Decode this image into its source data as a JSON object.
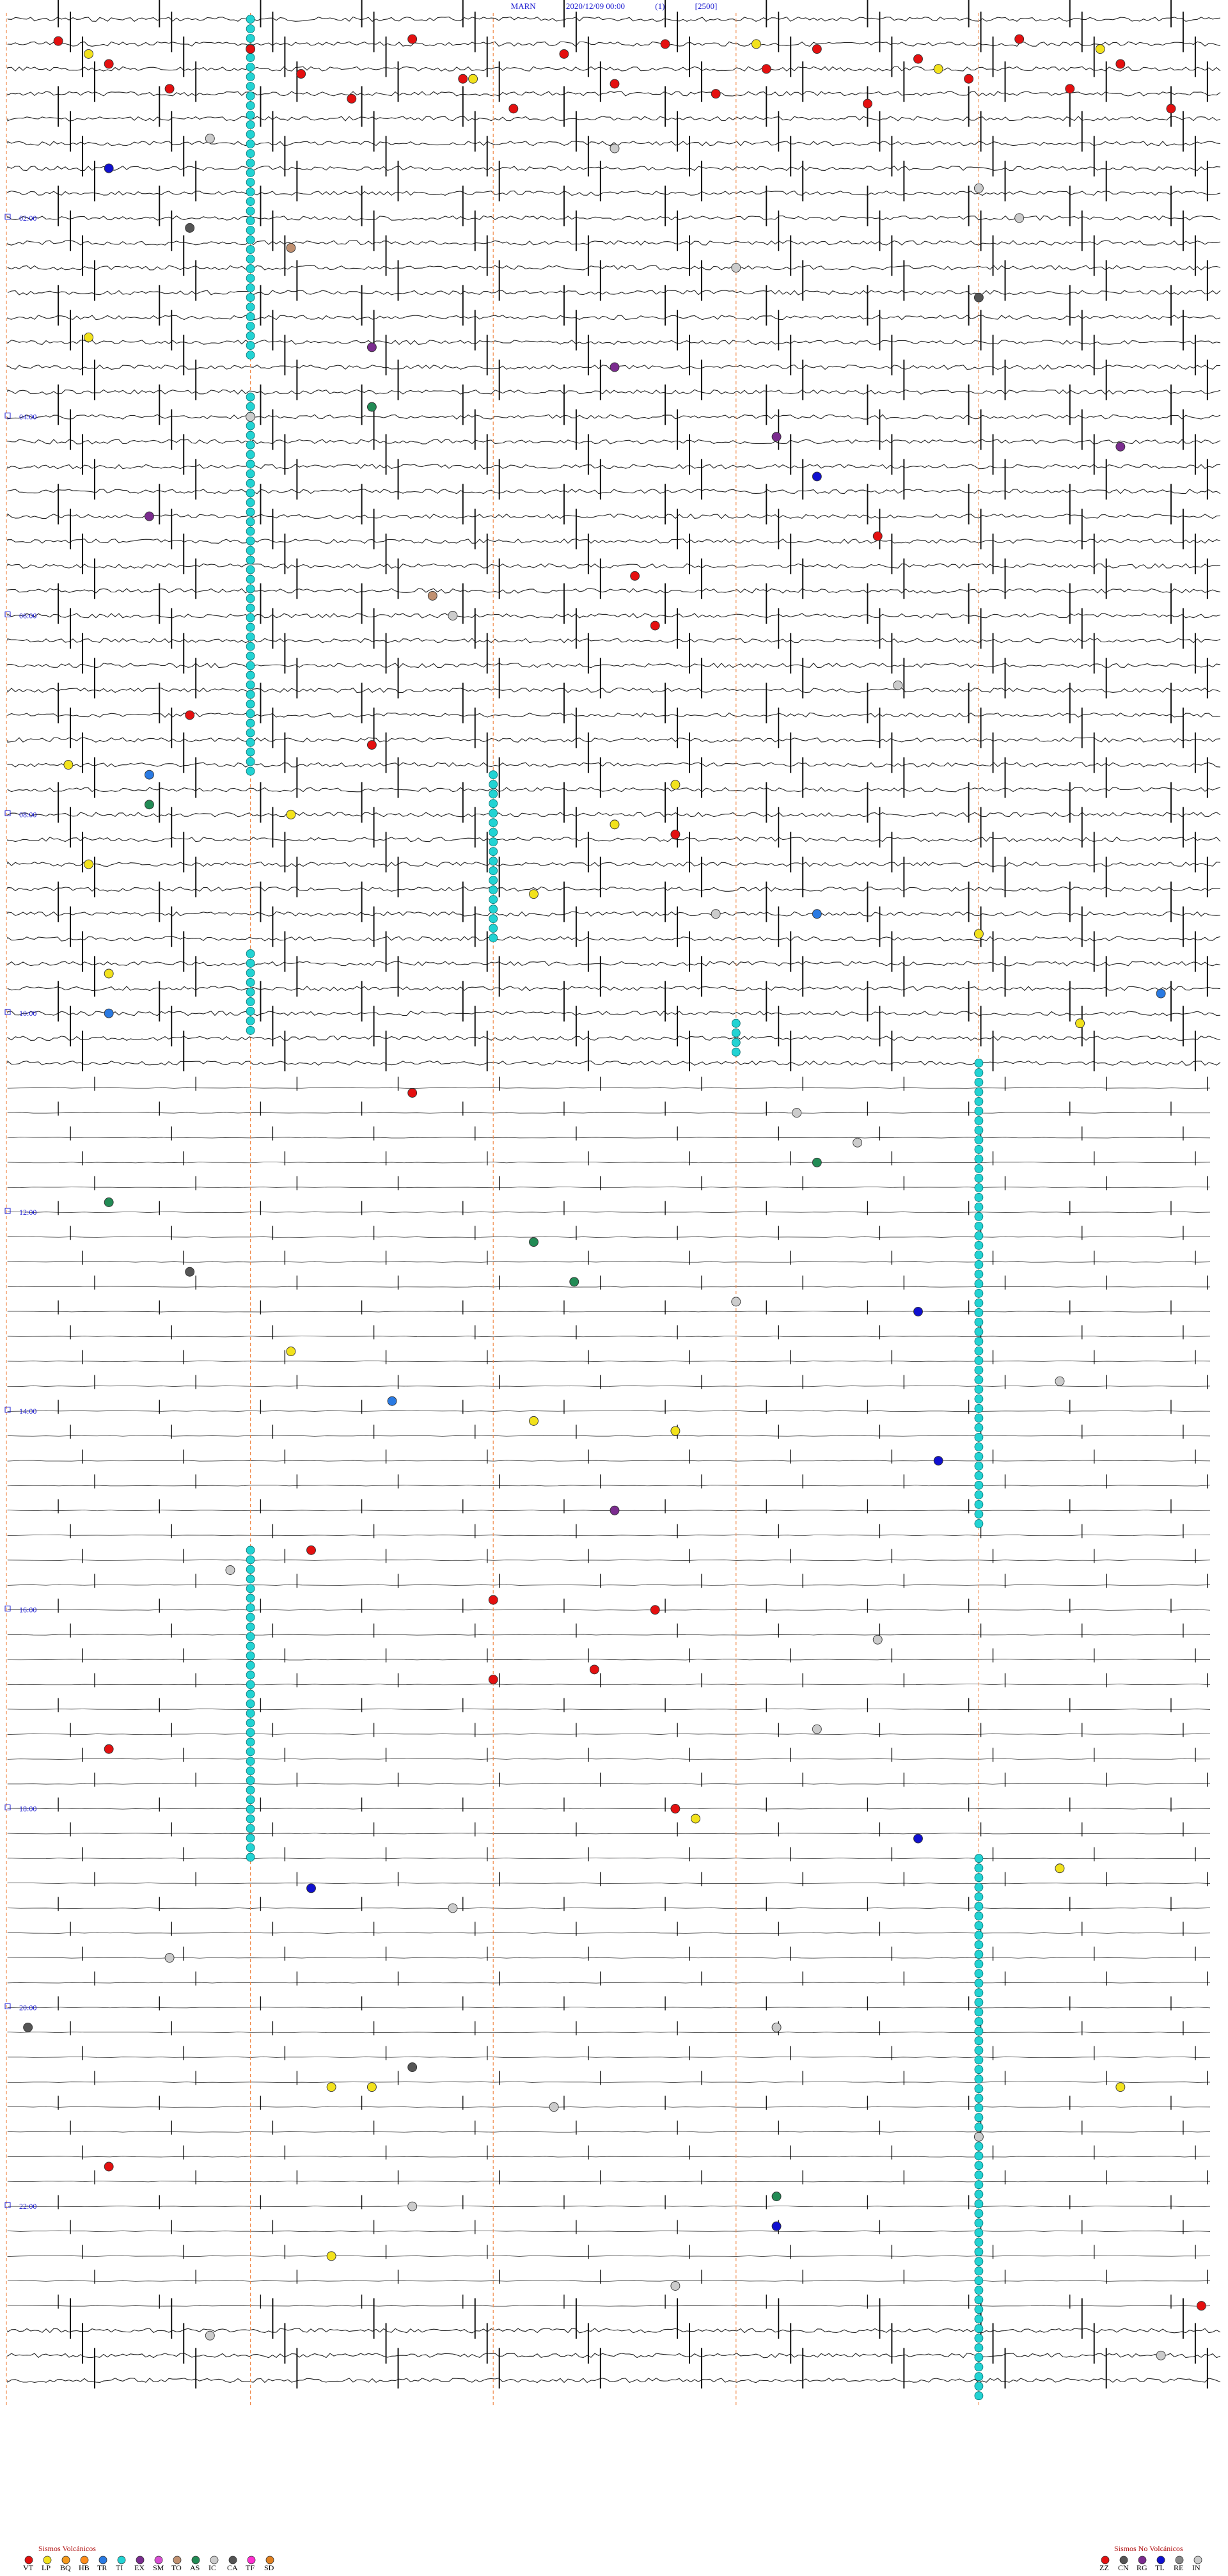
{
  "header": {
    "station": "MARN",
    "datetime": "2020/12/09 00:00",
    "channel": "(1)",
    "scale": "[2500]"
  },
  "chart_data": {
    "type": "helicorder",
    "title": "MARN 2020/12/09 00:00 (1) [2500]",
    "hour_labels": [
      "02:00",
      "04:00",
      "06:00",
      "08:00",
      "10:00",
      "12:00",
      "14:00",
      "16:00",
      "18:00",
      "20:00",
      "22:00"
    ],
    "x_range_minutes": [
      0,
      60
    ],
    "y_range_hours": [
      0,
      24
    ],
    "event_colors": {
      "VT": "#e41010",
      "LP": "#f2e21c",
      "BQ": "#f59a1e",
      "HB": "#ff8c1a",
      "TR": "#2a7ae2",
      "TI": "#22d3d3",
      "EX": "#7b2c8f",
      "SM": "#d94fd4",
      "TO": "#c09070",
      "AS": "#228b55",
      "IC": "#cccccc",
      "CA": "#555555",
      "TF": "#ff2fd0",
      "SD": "#e08020",
      "ZZ": "#e41010",
      "CN": "#555555",
      "RG": "#7b2c8f",
      "TL": "#1010d0",
      "RE": "#888888",
      "IN": "#cccccc"
    },
    "events": [
      {
        "t": 0.22,
        "m": 2.5,
        "c": "#e41010"
      },
      {
        "t": 0.45,
        "m": 5.0,
        "c": "#e41010"
      },
      {
        "t": 0.7,
        "m": 8.0,
        "c": "#e41010"
      },
      {
        "t": 0.3,
        "m": 12.0,
        "c": "#e41010"
      },
      {
        "t": 0.55,
        "m": 14.5,
        "c": "#e41010"
      },
      {
        "t": 0.8,
        "m": 17.0,
        "c": "#e41010"
      },
      {
        "t": 0.2,
        "m": 20.0,
        "c": "#e41010"
      },
      {
        "t": 0.6,
        "m": 22.5,
        "c": "#e41010"
      },
      {
        "t": 0.9,
        "m": 25.0,
        "c": "#e41010"
      },
      {
        "t": 0.35,
        "m": 27.5,
        "c": "#e41010"
      },
      {
        "t": 0.65,
        "m": 30.0,
        "c": "#e41010"
      },
      {
        "t": 0.25,
        "m": 32.5,
        "c": "#e41010"
      },
      {
        "t": 0.75,
        "m": 35.0,
        "c": "#e41010"
      },
      {
        "t": 0.5,
        "m": 37.5,
        "c": "#e41010"
      },
      {
        "t": 0.3,
        "m": 40.0,
        "c": "#e41010"
      },
      {
        "t": 0.85,
        "m": 42.5,
        "c": "#e41010"
      },
      {
        "t": 0.4,
        "m": 45.0,
        "c": "#e41010"
      },
      {
        "t": 0.6,
        "m": 47.5,
        "c": "#e41010"
      },
      {
        "t": 0.2,
        "m": 50.0,
        "c": "#e41010"
      },
      {
        "t": 0.7,
        "m": 52.5,
        "c": "#e41010"
      },
      {
        "t": 0.45,
        "m": 55.0,
        "c": "#e41010"
      },
      {
        "t": 0.9,
        "m": 57.5,
        "c": "#e41010"
      },
      {
        "t": 0.35,
        "m": 4.0,
        "c": "#f2e21c"
      },
      {
        "t": 0.6,
        "m": 23.0,
        "c": "#f2e21c"
      },
      {
        "t": 0.25,
        "m": 37.0,
        "c": "#f2e21c"
      },
      {
        "t": 0.5,
        "m": 46.0,
        "c": "#f2e21c"
      },
      {
        "t": 0.3,
        "m": 54.0,
        "c": "#f2e21c"
      },
      {
        "t": 1.2,
        "m": 10.0,
        "c": "#cccccc"
      },
      {
        "t": 1.3,
        "m": 30.0,
        "c": "#cccccc"
      },
      {
        "t": 1.5,
        "m": 5.0,
        "c": "#1010d0"
      },
      {
        "t": 1.7,
        "m": 48.0,
        "c": "#cccccc"
      },
      {
        "t": 2.1,
        "m": 9.0,
        "c": "#555555"
      },
      {
        "t": 2.3,
        "m": 14.0,
        "c": "#c09070"
      },
      {
        "t": 2.5,
        "m": 36.0,
        "c": "#cccccc"
      },
      {
        "t": 2.8,
        "m": 48.0,
        "c": "#555555"
      },
      {
        "t": 3.2,
        "m": 4.0,
        "c": "#f2e21c"
      },
      {
        "t": 3.3,
        "m": 18.0,
        "c": "#7b2c8f"
      },
      {
        "t": 3.5,
        "m": 30.0,
        "c": "#7b2c8f"
      },
      {
        "t": 3.9,
        "m": 18.0,
        "c": "#228b55"
      },
      {
        "t": 4.2,
        "m": 38.0,
        "c": "#7b2c8f"
      },
      {
        "t": 4.3,
        "m": 55.0,
        "c": "#7b2c8f"
      },
      {
        "t": 4.6,
        "m": 40.0,
        "c": "#1010d0"
      },
      {
        "t": 5.0,
        "m": 7.0,
        "c": "#7b2c8f"
      },
      {
        "t": 5.2,
        "m": 43.0,
        "c": "#e41010"
      },
      {
        "t": 5.6,
        "m": 31.0,
        "c": "#e41010"
      },
      {
        "t": 5.8,
        "m": 21.0,
        "c": "#c09070"
      },
      {
        "t": 6.1,
        "m": 32.0,
        "c": "#e41010"
      },
      {
        "t": 6.7,
        "m": 44.0,
        "c": "#cccccc"
      },
      {
        "t": 7.0,
        "m": 9.0,
        "c": "#e41010"
      },
      {
        "t": 7.3,
        "m": 18.0,
        "c": "#e41010"
      },
      {
        "t": 7.5,
        "m": 3.0,
        "c": "#f2e21c"
      },
      {
        "t": 7.6,
        "m": 7.0,
        "c": "#2a7ae2"
      },
      {
        "t": 7.7,
        "m": 33.0,
        "c": "#f2e21c"
      },
      {
        "t": 7.9,
        "m": 7.0,
        "c": "#228b55"
      },
      {
        "t": 8.0,
        "m": 14.0,
        "c": "#f2e21c"
      },
      {
        "t": 8.1,
        "m": 30.0,
        "c": "#f2e21c"
      },
      {
        "t": 8.2,
        "m": 33.0,
        "c": "#e41010"
      },
      {
        "t": 8.5,
        "m": 4.0,
        "c": "#f2e21c"
      },
      {
        "t": 8.8,
        "m": 26.0,
        "c": "#f2e21c"
      },
      {
        "t": 9.0,
        "m": 40.0,
        "c": "#2a7ae2"
      },
      {
        "t": 9.2,
        "m": 48.0,
        "c": "#f2e21c"
      },
      {
        "t": 9.6,
        "m": 5.0,
        "c": "#f2e21c"
      },
      {
        "t": 9.8,
        "m": 57.0,
        "c": "#2a7ae2"
      },
      {
        "t": 10.0,
        "m": 5.0,
        "c": "#2a7ae2"
      },
      {
        "t": 10.1,
        "m": 53.0,
        "c": "#f2e21c"
      },
      {
        "t": 10.8,
        "m": 20.0,
        "c": "#e41010"
      },
      {
        "t": 11.5,
        "m": 40.0,
        "c": "#228b55"
      },
      {
        "t": 11.9,
        "m": 5.0,
        "c": "#228b55"
      },
      {
        "t": 12.3,
        "m": 26.0,
        "c": "#228b55"
      },
      {
        "t": 12.6,
        "m": 9.0,
        "c": "#555555"
      },
      {
        "t": 12.7,
        "m": 28.0,
        "c": "#228b55"
      },
      {
        "t": 13.0,
        "m": 45.0,
        "c": "#1010d0"
      },
      {
        "t": 13.4,
        "m": 14.0,
        "c": "#f2e21c"
      },
      {
        "t": 13.9,
        "m": 19.0,
        "c": "#2a7ae2"
      },
      {
        "t": 14.1,
        "m": 26.0,
        "c": "#f2e21c"
      },
      {
        "t": 14.2,
        "m": 33.0,
        "c": "#f2e21c"
      },
      {
        "t": 14.5,
        "m": 46.0,
        "c": "#1010d0"
      },
      {
        "t": 15.0,
        "m": 30.0,
        "c": "#7b2c8f"
      },
      {
        "t": 15.4,
        "m": 15.0,
        "c": "#e41010"
      },
      {
        "t": 15.9,
        "m": 24.0,
        "c": "#e41010"
      },
      {
        "t": 16.0,
        "m": 32.0,
        "c": "#e41010"
      },
      {
        "t": 16.6,
        "m": 29.0,
        "c": "#e41010"
      },
      {
        "t": 16.7,
        "m": 24.0,
        "c": "#e41010"
      },
      {
        "t": 17.4,
        "m": 5.0,
        "c": "#e41010"
      },
      {
        "t": 18.0,
        "m": 33.0,
        "c": "#e41010"
      },
      {
        "t": 18.1,
        "m": 34.0,
        "c": "#f2e21c"
      },
      {
        "t": 18.3,
        "m": 45.0,
        "c": "#1010d0"
      },
      {
        "t": 18.6,
        "m": 52.0,
        "c": "#f2e21c"
      },
      {
        "t": 18.8,
        "m": 15.0,
        "c": "#1010d0"
      },
      {
        "t": 20.2,
        "m": 1.0,
        "c": "#555555"
      },
      {
        "t": 20.6,
        "m": 20.0,
        "c": "#555555"
      },
      {
        "t": 20.8,
        "m": 16.0,
        "c": "#f2e21c"
      },
      {
        "t": 20.8,
        "m": 18.0,
        "c": "#f2e21c"
      },
      {
        "t": 20.8,
        "m": 55.0,
        "c": "#f2e21c"
      },
      {
        "t": 21.6,
        "m": 5.0,
        "c": "#e41010"
      },
      {
        "t": 21.9,
        "m": 38.0,
        "c": "#228b55"
      },
      {
        "t": 22.2,
        "m": 38.0,
        "c": "#1010d0"
      },
      {
        "t": 22.5,
        "m": 16.0,
        "c": "#f2e21c"
      },
      {
        "t": 23.0,
        "m": 59.0,
        "c": "#e41010"
      },
      {
        "t": 2.0,
        "m": 50.0,
        "c": "#cccccc"
      },
      {
        "t": 4.0,
        "m": 12.0,
        "c": "#cccccc"
      },
      {
        "t": 6.0,
        "m": 22.0,
        "c": "#cccccc"
      },
      {
        "t": 9.0,
        "m": 35.0,
        "c": "#cccccc"
      },
      {
        "t": 11.0,
        "m": 39.0,
        "c": "#cccccc"
      },
      {
        "t": 11.3,
        "m": 42.0,
        "c": "#cccccc"
      },
      {
        "t": 12.9,
        "m": 36.0,
        "c": "#cccccc"
      },
      {
        "t": 13.7,
        "m": 52.0,
        "c": "#cccccc"
      },
      {
        "t": 15.6,
        "m": 11.0,
        "c": "#cccccc"
      },
      {
        "t": 16.3,
        "m": 43.0,
        "c": "#cccccc"
      },
      {
        "t": 17.2,
        "m": 40.0,
        "c": "#cccccc"
      },
      {
        "t": 19.0,
        "m": 22.0,
        "c": "#cccccc"
      },
      {
        "t": 19.5,
        "m": 8.0,
        "c": "#cccccc"
      },
      {
        "t": 20.2,
        "m": 38.0,
        "c": "#cccccc"
      },
      {
        "t": 21.0,
        "m": 27.0,
        "c": "#cccccc"
      },
      {
        "t": 21.3,
        "m": 48.0,
        "c": "#cccccc"
      },
      {
        "t": 22.0,
        "m": 20.0,
        "c": "#cccccc"
      },
      {
        "t": 22.8,
        "m": 33.0,
        "c": "#cccccc"
      },
      {
        "t": 23.3,
        "m": 10.0,
        "c": "#cccccc"
      },
      {
        "t": 23.5,
        "m": 57.0,
        "c": "#cccccc"
      }
    ],
    "tremor_columns": [
      {
        "m": 12.0,
        "t0": 0.0,
        "t1": 3.4
      },
      {
        "m": 12.0,
        "t0": 3.8,
        "t1": 7.6
      },
      {
        "m": 24.0,
        "t0": 7.6,
        "t1": 9.3
      },
      {
        "m": 12.0,
        "t0": 9.4,
        "t1": 10.2
      },
      {
        "m": 36.0,
        "t0": 10.1,
        "t1": 10.4
      },
      {
        "m": 48.0,
        "t0": 10.5,
        "t1": 15.2
      },
      {
        "m": 12.0,
        "t0": 15.4,
        "t1": 18.5
      },
      {
        "m": 48.0,
        "t0": 18.5,
        "t1": 24.0
      }
    ]
  },
  "legend": {
    "volcanic_title": "Sismos Volcánicos",
    "volcanic_codes": [
      "VT",
      "LP",
      "BQ",
      "HB",
      "TR",
      "TI",
      "EX",
      "SM",
      "TO",
      "AS",
      "IC",
      "CA",
      "TF",
      "SD"
    ],
    "nonvolcanic_title": "Sismos No Volcánicos",
    "nonvolcanic_codes": [
      "ZZ",
      "CN",
      "RG",
      "TL",
      "RE",
      "IN"
    ]
  }
}
